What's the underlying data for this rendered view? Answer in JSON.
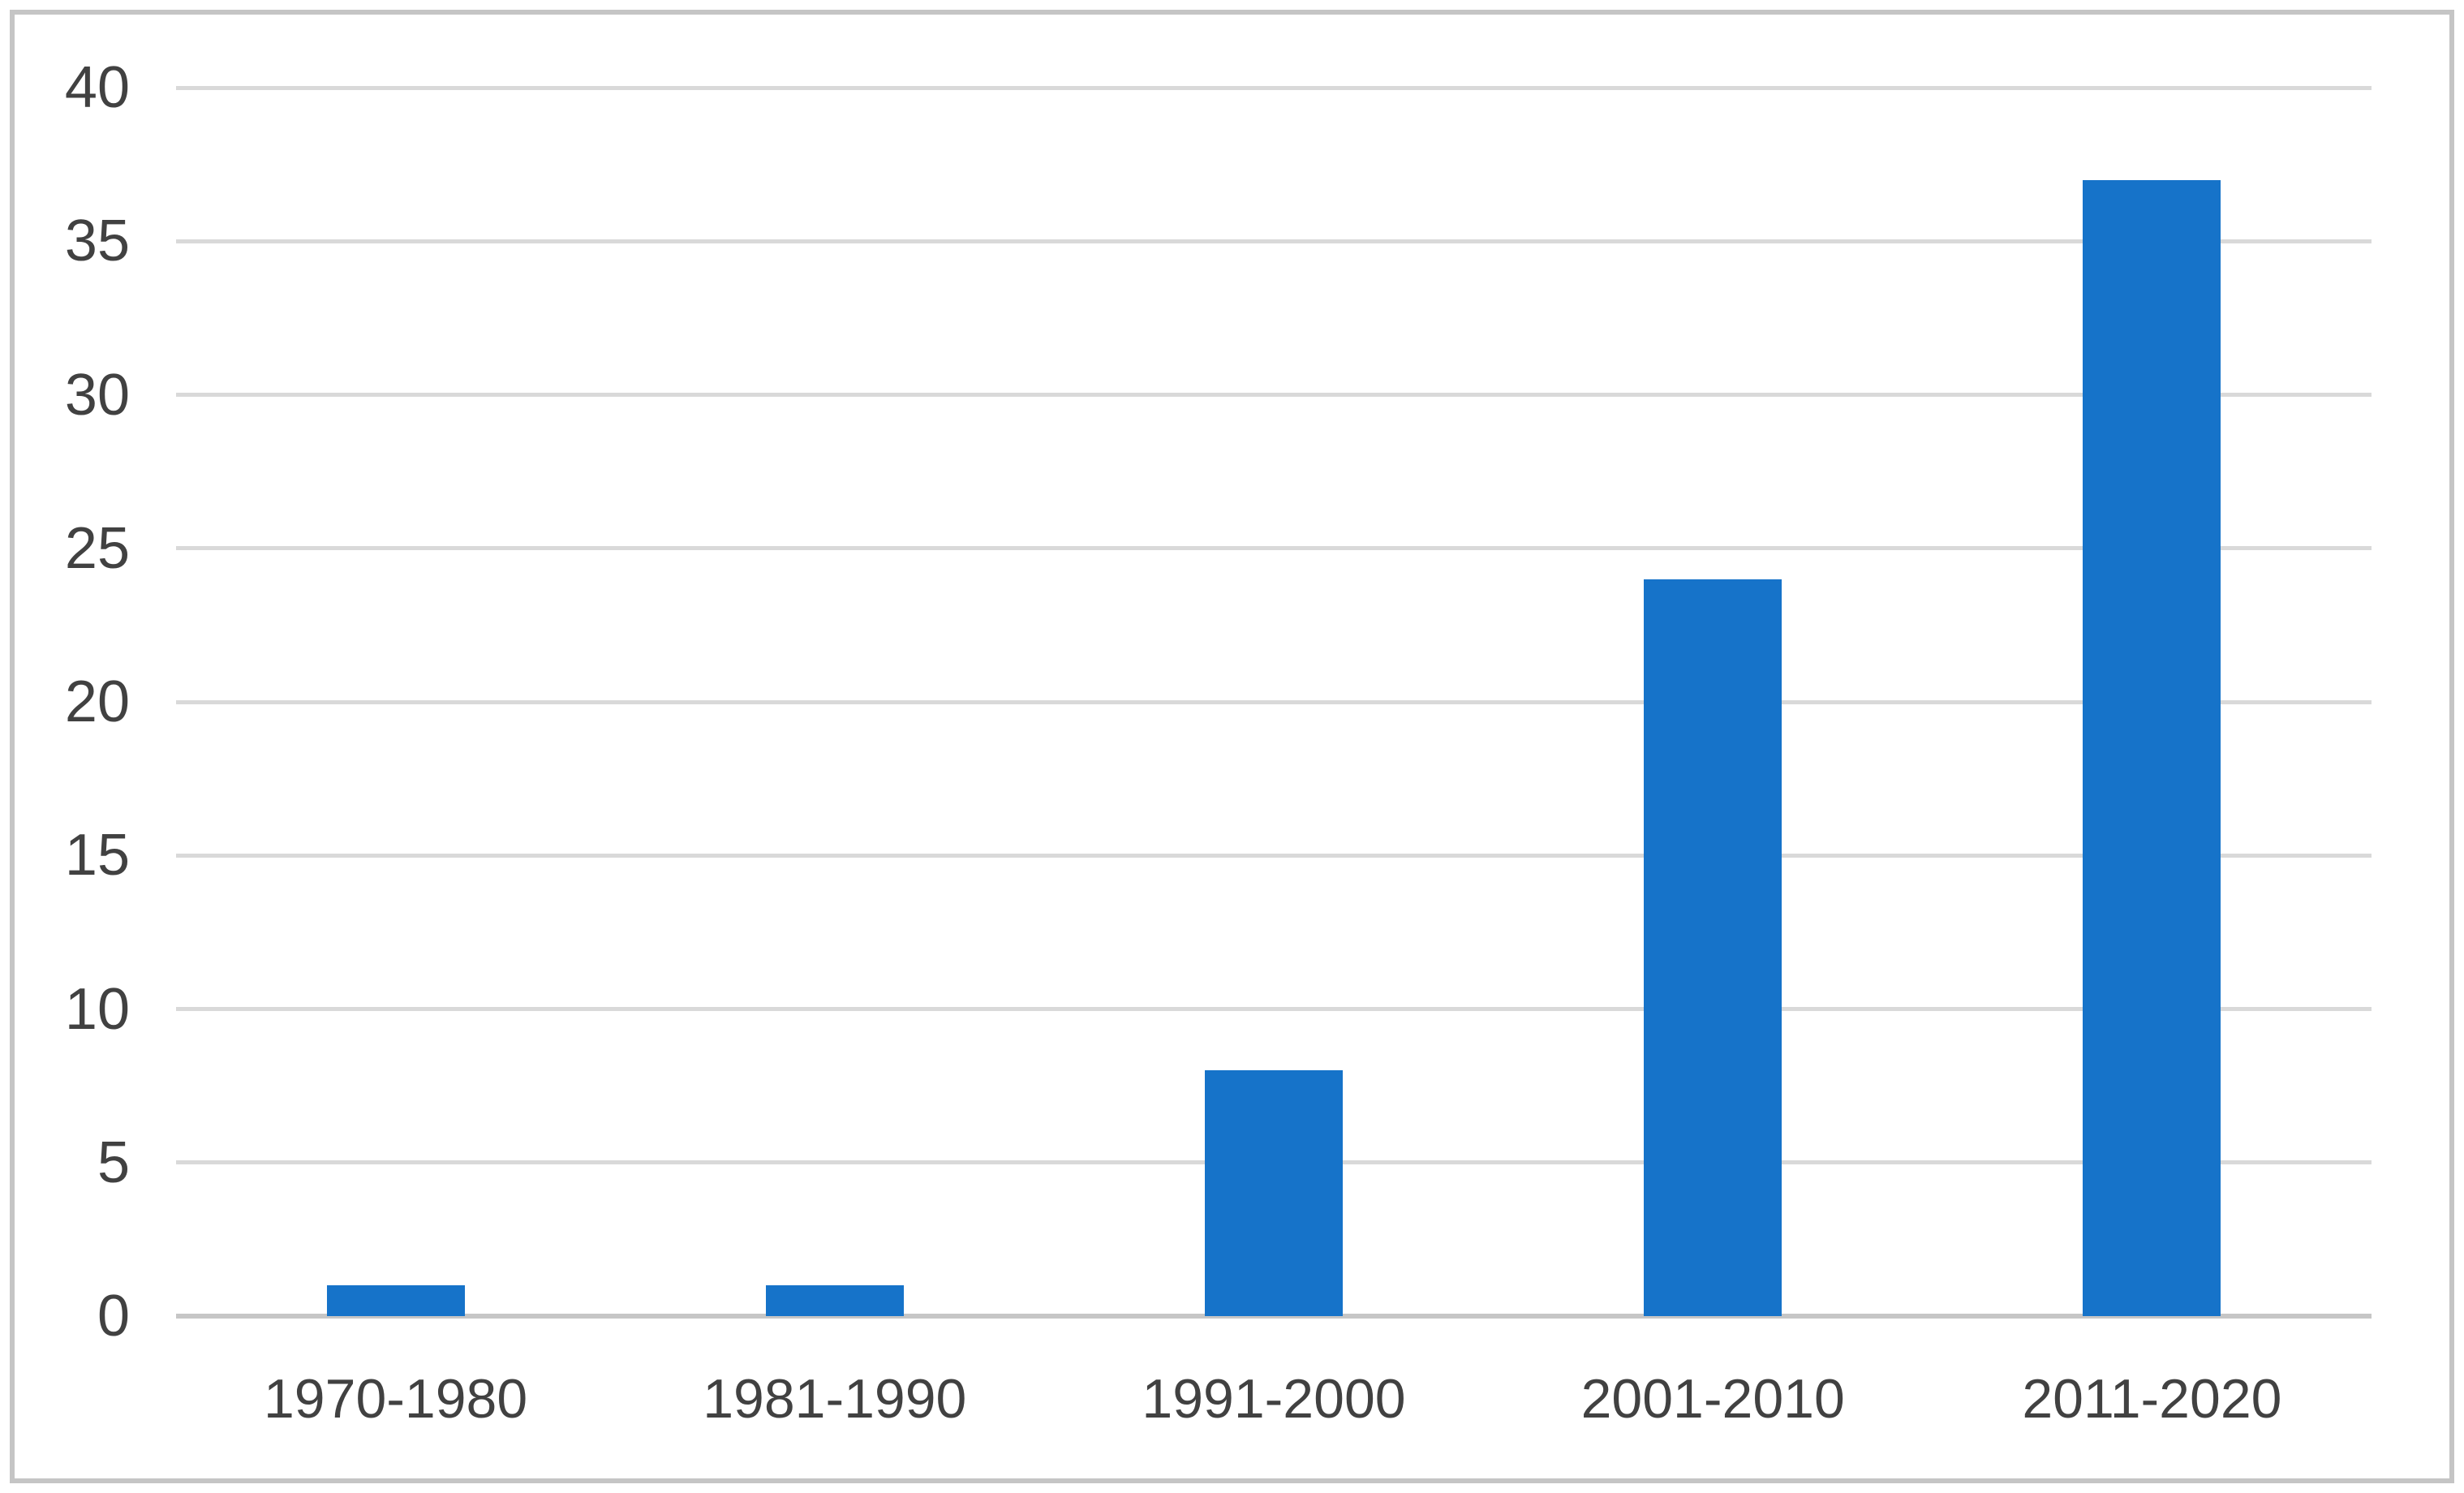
{
  "chart_data": {
    "type": "bar",
    "categories": [
      "1970-1980",
      "1981-1990",
      "1991-2000",
      "2001-2010",
      "2011-2020"
    ],
    "values": [
      1,
      1,
      8,
      24,
      37
    ],
    "title": "",
    "xlabel": "",
    "ylabel": "",
    "ylim": [
      0,
      40
    ],
    "ytick_step": 5,
    "ytick_labels": [
      "0",
      "5",
      "10",
      "15",
      "20",
      "25",
      "30",
      "35",
      "40"
    ],
    "grid": true,
    "legend": false,
    "colors": {
      "bar": "#1673c9",
      "gridline": "#d9d9d9",
      "axis_line": "#c6c6c6",
      "tick_label": "#414141",
      "frame_border": "#c5c5c5",
      "background": "#ffffff"
    }
  }
}
